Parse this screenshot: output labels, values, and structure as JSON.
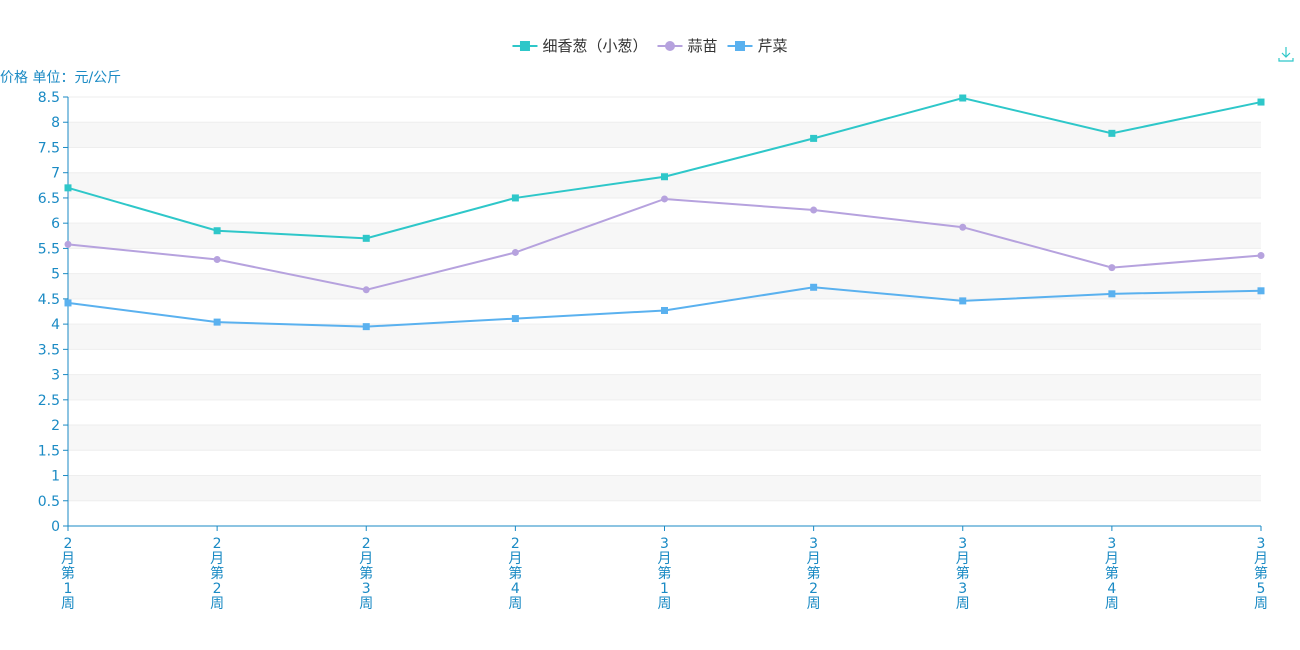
{
  "chart_data": {
    "type": "line",
    "ylabel": "价格 单位：元/公斤",
    "categories": [
      "2月第1周",
      "2月第2周",
      "2月第3周",
      "2月第4周",
      "3月第1周",
      "3月第2周",
      "3月第3周",
      "3月第4周",
      "3月第5周"
    ],
    "ylim": [
      0,
      8.5
    ],
    "ytick_step": 0.5,
    "legend_position": "top-center",
    "series": [
      {
        "name": "细香葱（小葱）",
        "color": "#2ec7c9",
        "marker": "square",
        "values": [
          6.7,
          5.85,
          5.7,
          6.5,
          6.92,
          7.68,
          8.48,
          7.78,
          8.4
        ]
      },
      {
        "name": "蒜苗",
        "color": "#b6a2de",
        "marker": "circle",
        "values": [
          5.58,
          5.28,
          4.68,
          5.42,
          6.48,
          6.26,
          5.92,
          5.12,
          5.36
        ]
      },
      {
        "name": "芹菜",
        "color": "#5ab1ef",
        "marker": "square",
        "values": [
          4.42,
          4.04,
          3.95,
          4.11,
          4.27,
          4.73,
          4.46,
          4.6,
          4.66
        ]
      }
    ]
  },
  "toolbar": {
    "download_icon": "download-icon",
    "icon_color": "#2ec7c9"
  },
  "axis_color": "#1a8ac4"
}
